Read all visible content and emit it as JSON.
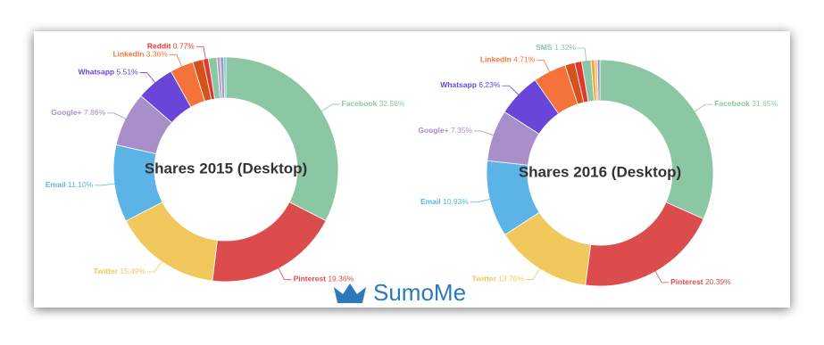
{
  "chart_data": [
    {
      "type": "pie",
      "title": "Shares 2015 (Desktop)",
      "categories": [
        "Facebook",
        "Pinterest",
        "Twitter",
        "Email",
        "Google+",
        "Whatsapp",
        "LinkedIn",
        null,
        "Reddit",
        null,
        null,
        null,
        null
      ],
      "values": [
        32.56,
        19.36,
        15.49,
        11.1,
        7.86,
        5.51,
        3.36,
        1.5,
        0.77,
        1.2,
        0.5,
        0.5,
        0.29
      ],
      "value_labels": [
        "32.56%",
        "19.36%",
        "15.49%",
        "11.10%",
        "7.86%",
        "5.51%",
        "3.36%",
        null,
        "0.77%",
        null,
        null,
        null,
        null
      ],
      "colors": [
        "#8cc7a3",
        "#dd4c4c",
        "#f1c85c",
        "#5bb3e6",
        "#a98fca",
        "#6a45d9",
        "#f4733a",
        "#d6521d",
        "#e2372c",
        "#8cc7a3",
        "#b3a4d6",
        "#9aa0a6",
        "#5bb3e6"
      ]
    },
    {
      "type": "pie",
      "title": "Shares 2016 (Desktop)",
      "categories": [
        "Facebook",
        "Pinterest",
        "Twitter",
        "Email",
        "Google+",
        "Whatsapp",
        "LinkedIn",
        null,
        null,
        "SMS",
        null,
        null,
        null
      ],
      "values": [
        31.65,
        20.39,
        13.76,
        10.93,
        7.35,
        6.23,
        4.71,
        1.4,
        1.0,
        1.32,
        0.5,
        0.4,
        0.36
      ],
      "value_labels": [
        "31.65%",
        "20.39%",
        "13.76%",
        "10.93%",
        "7.35%",
        "6.23%",
        "4.71%",
        null,
        null,
        "1.32%",
        null,
        null,
        null
      ],
      "colors": [
        "#8cc7a3",
        "#dd4c4c",
        "#f1c85c",
        "#5bb3e6",
        "#a98fca",
        "#6a45d9",
        "#f4733a",
        "#d6521d",
        "#e2372c",
        "#8cc7a3",
        "#f4a23a",
        "#f1c85c",
        "#8f7fd0"
      ]
    }
  ],
  "brand": "SumoMe"
}
